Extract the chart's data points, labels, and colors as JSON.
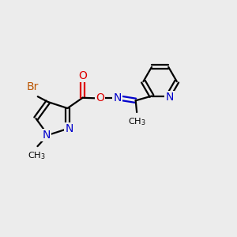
{
  "bg_color": "#ececec",
  "bond_color": "#000000",
  "N_color": "#0000cc",
  "O_color": "#dd0000",
  "Br_color": "#bb5500",
  "line_width": 1.6,
  "font_size": 10,
  "fig_size": [
    3.0,
    3.0
  ],
  "dpi": 100,
  "xlim": [
    0,
    10
  ],
  "ylim": [
    0,
    10
  ]
}
